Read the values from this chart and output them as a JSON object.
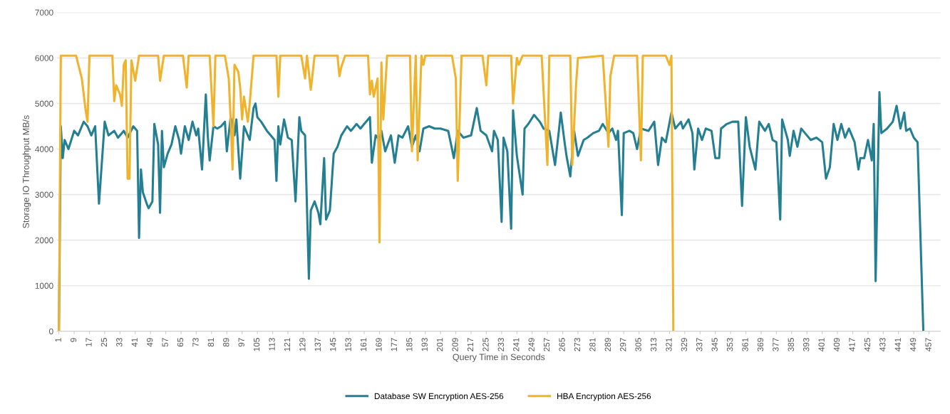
{
  "chart_data": {
    "type": "line",
    "xlabel": "Query Time in Seconds",
    "ylabel": "Storage IO Throughput MB/s",
    "xlim": [
      0,
      463
    ],
    "ylim": [
      0,
      7000
    ],
    "yticks": [
      0,
      1000,
      2000,
      3000,
      4000,
      5000,
      6000,
      7000
    ],
    "xticks": [
      1,
      9,
      17,
      25,
      33,
      41,
      49,
      57,
      65,
      73,
      81,
      89,
      97,
      105,
      113,
      121,
      129,
      137,
      145,
      153,
      161,
      169,
      177,
      185,
      193,
      201,
      209,
      217,
      225,
      233,
      241,
      249,
      257,
      265,
      273,
      281,
      289,
      297,
      305,
      313,
      321,
      329,
      337,
      345,
      353,
      361,
      369,
      377,
      385,
      393,
      401,
      409,
      417,
      425,
      433,
      441,
      449,
      457
    ],
    "grid": "y",
    "legend": "bottom",
    "marker": "none",
    "line_style": "solid",
    "series": [
      {
        "name": "Database SW Encryption AES-256",
        "color": "#237f91",
        "x": [
          1,
          2,
          3,
          4,
          6,
          9,
          11,
          14,
          16,
          18,
          20,
          22,
          25,
          27,
          30,
          32,
          35,
          37,
          40,
          42,
          43,
          44,
          45,
          47,
          48,
          50,
          51,
          53,
          54,
          55,
          56,
          58,
          60,
          62,
          64,
          65,
          67,
          69,
          71,
          73,
          74,
          76,
          78,
          79,
          80,
          82,
          84,
          86,
          88,
          89,
          91,
          93,
          94,
          96,
          98,
          99,
          101,
          103,
          104,
          105,
          107,
          110,
          112,
          114,
          115,
          116,
          117,
          119,
          121,
          123,
          125,
          127,
          128,
          130,
          132,
          133,
          135,
          137,
          138,
          140,
          141,
          143,
          145,
          147,
          149,
          152,
          154,
          157,
          159,
          161,
          164,
          165,
          167,
          169,
          170,
          172,
          175,
          177,
          179,
          181,
          184,
          186,
          188,
          190,
          192,
          195,
          198,
          201,
          205,
          208,
          210,
          213,
          217,
          220,
          222,
          225,
          228,
          229,
          231,
          233,
          234,
          236,
          238,
          239,
          241,
          244,
          245,
          247,
          250,
          253,
          255,
          258,
          261,
          263,
          264,
          266,
          267,
          269,
          271,
          273,
          276,
          278,
          281,
          284,
          286,
          289,
          291,
          293,
          294,
          296,
          297,
          300,
          302,
          304,
          306,
          310,
          313,
          315,
          317,
          319,
          322,
          324,
          327,
          328,
          331,
          333,
          334,
          336,
          338,
          340,
          343,
          345,
          347,
          348,
          351,
          354,
          357,
          359,
          361,
          363,
          366,
          368,
          371,
          373,
          375,
          377,
          379,
          380,
          383,
          384,
          386,
          388,
          390,
          392,
          395,
          398,
          401,
          403,
          405,
          407,
          409,
          411,
          413,
          415,
          418,
          420,
          421,
          423,
          425,
          427,
          428,
          429,
          431,
          432,
          435,
          438,
          440,
          442,
          444,
          445,
          447,
          449,
          451,
          454
        ],
        "values": [
          0,
          4500,
          3800,
          4200,
          4000,
          4400,
          4300,
          4600,
          4500,
          4300,
          4500,
          2800,
          4600,
          4300,
          4400,
          4250,
          4400,
          4250,
          4500,
          4400,
          2050,
          3550,
          3050,
          2800,
          2700,
          2850,
          4550,
          4100,
          2600,
          4400,
          3600,
          3900,
          4100,
          4500,
          4200,
          3900,
          4500,
          4200,
          4600,
          4300,
          4450,
          3550,
          5200,
          4300,
          3750,
          4500,
          4450,
          4500,
          4600,
          3950,
          4700,
          4300,
          4650,
          3350,
          4500,
          4400,
          4200,
          4900,
          5000,
          4700,
          4600,
          4400,
          4300,
          4200,
          3300,
          4500,
          4100,
          4650,
          4250,
          4200,
          2850,
          4700,
          4400,
          4300,
          1150,
          2650,
          2850,
          2600,
          2350,
          3800,
          2450,
          2650,
          3900,
          4050,
          4300,
          4500,
          4400,
          4550,
          4450,
          4550,
          4700,
          3700,
          4300,
          4200,
          4400,
          3950,
          4300,
          3700,
          4300,
          4250,
          4500,
          4050,
          4300,
          3950,
          4450,
          4500,
          4450,
          4450,
          4400,
          3800,
          4400,
          4250,
          4300,
          4900,
          4400,
          4300,
          3950,
          4400,
          4200,
          2400,
          4250,
          3950,
          2250,
          4850,
          3850,
          3000,
          4450,
          4550,
          4750,
          4600,
          4450,
          4400,
          3650,
          4400,
          4800,
          4150,
          3850,
          3400,
          4400,
          3850,
          4200,
          4250,
          4350,
          4400,
          4550,
          4350,
          4450,
          4200,
          4400,
          2550,
          4350,
          4400,
          4350,
          4000,
          4450,
          4400,
          4600,
          3650,
          4250,
          4150,
          4800,
          4450,
          4600,
          4450,
          4650,
          4350,
          3550,
          4450,
          4200,
          4450,
          4400,
          3800,
          3800,
          4450,
          4550,
          4600,
          4600,
          2750,
          4700,
          4050,
          3550,
          4600,
          4400,
          4550,
          4200,
          4150,
          2450,
          4650,
          4200,
          3850,
          4400,
          4050,
          4450,
          4350,
          4200,
          4250,
          4150,
          3350,
          3600,
          4550,
          4200,
          4550,
          4250,
          4450,
          4150,
          3550,
          3800,
          3800,
          4200,
          3750,
          4550,
          1100,
          5250,
          4350,
          4450,
          4600,
          4950,
          4450,
          4800,
          4400,
          4450,
          4250,
          4150,
          0
        ]
      },
      {
        "name": "HBA Encryption AES-256",
        "color": "#efb32d",
        "x": [
          1,
          2,
          10,
          13,
          15,
          16,
          17,
          29,
          30,
          31,
          33,
          34,
          35,
          36,
          37,
          38,
          39,
          41,
          43,
          53,
          54,
          56,
          66,
          68,
          69,
          80,
          82,
          83,
          88,
          90,
          91,
          92,
          93,
          95,
          96,
          97,
          98,
          100,
          101,
          103,
          115,
          116,
          117,
          128,
          130,
          131,
          133,
          135,
          147,
          148,
          149,
          151,
          163,
          164,
          165,
          166,
          168,
          169,
          170,
          171,
          173,
          185,
          186,
          188,
          189,
          191,
          192,
          193,
          207,
          209,
          210,
          212,
          223,
          225,
          226,
          232,
          238,
          239,
          241,
          242,
          244,
          254,
          257,
          258,
          269,
          270,
          272,
          273,
          286,
          289,
          290,
          292,
          304,
          306,
          307,
          319,
          321,
          322,
          323
        ],
        "values": [
          0,
          6050,
          6050,
          5550,
          4850,
          4600,
          6050,
          6050,
          5050,
          5400,
          5200,
          4950,
          5850,
          5950,
          3350,
          3350,
          5950,
          5500,
          6050,
          6050,
          5500,
          6050,
          6050,
          5350,
          6050,
          6050,
          4500,
          6050,
          6050,
          5550,
          4650,
          3550,
          5850,
          5700,
          5350,
          4650,
          5150,
          4600,
          5000,
          6050,
          6050,
          5150,
          6050,
          6050,
          5550,
          6050,
          5300,
          6050,
          6050,
          5600,
          5800,
          6050,
          6050,
          5200,
          5500,
          5150,
          5550,
          1950,
          5900,
          4650,
          6050,
          6050,
          3950,
          6050,
          3750,
          6050,
          5850,
          6050,
          6050,
          5550,
          3300,
          6050,
          6050,
          5400,
          6050,
          6050,
          6050,
          5000,
          6000,
          5850,
          6050,
          6050,
          3650,
          6050,
          6050,
          3650,
          5400,
          6000,
          6050,
          4050,
          5600,
          6050,
          6050,
          3750,
          6050,
          6050,
          5850,
          6050,
          0
        ]
      }
    ]
  }
}
